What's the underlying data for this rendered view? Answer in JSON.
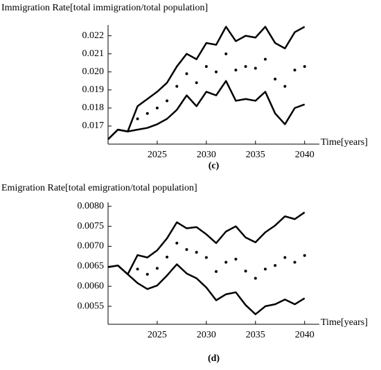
{
  "chart_data": [
    {
      "type": "line",
      "title": "Immigration Rate[total immigration/total population]",
      "x_label": "Time[years]",
      "caption": "(c)",
      "x": [
        2020,
        2021,
        2022,
        2023,
        2024,
        2025,
        2026,
        2027,
        2028,
        2029,
        2030,
        2031,
        2032,
        2033,
        2034,
        2035,
        2036,
        2037,
        2038,
        2039,
        2040
      ],
      "xlim": [
        2020,
        2041.5
      ],
      "xticks": [
        2025,
        2030,
        2035,
        2040
      ],
      "ylim": [
        0.016,
        0.0226
      ],
      "yticks": [
        0.017,
        0.018,
        0.019,
        {
          "value": 0.02,
          "label": "0.020"
        },
        0.021,
        0.022
      ],
      "series": [
        {
          "style": "line",
          "color": "#000000",
          "values": [
            0.01627,
            0.0168,
            0.0167,
            0.0181,
            0.0185,
            0.0189,
            0.0194,
            0.0203,
            0.021,
            0.0207,
            0.0216,
            0.0215,
            0.0225,
            0.0217,
            0.022,
            0.0219,
            0.0225,
            0.0216,
            0.0213,
            0.0222,
            0.0225
          ]
        },
        {
          "style": "line",
          "color": "#000000",
          "values": [
            0.01627,
            0.0168,
            0.0167,
            0.0168,
            0.0169,
            0.0171,
            0.0174,
            0.0179,
            0.0187,
            0.0181,
            0.0189,
            0.0187,
            0.0195,
            0.0184,
            0.0185,
            0.0184,
            0.0189,
            0.0177,
            0.0171,
            0.018,
            0.0182
          ]
        },
        {
          "style": "dots",
          "color": "#000000",
          "values": [
            null,
            null,
            null,
            0.0174,
            0.0177,
            0.018,
            0.0184,
            0.0192,
            0.0199,
            0.0194,
            0.0203,
            0.02,
            0.021,
            0.0201,
            0.0203,
            0.0202,
            0.0207,
            0.0196,
            0.0192,
            0.0201,
            0.0203
          ]
        }
      ]
    },
    {
      "type": "line",
      "title": "Emigration Rate[total emigration/total population]",
      "x_label": "Time[years]",
      "caption": "(d)",
      "x": [
        2020,
        2021,
        2022,
        2023,
        2024,
        2025,
        2026,
        2027,
        2028,
        2029,
        2030,
        2031,
        2032,
        2033,
        2034,
        2035,
        2036,
        2037,
        2038,
        2039,
        2040
      ],
      "xlim": [
        2020,
        2041.5
      ],
      "xticks": [
        2025,
        2030,
        2035,
        2040
      ],
      "ylim": [
        0.00505,
        0.0081
      ],
      "yticks": [
        0.0055,
        {
          "value": 0.006,
          "label": "0.0060"
        },
        0.0065,
        {
          "value": 0.007,
          "label": "0.0070"
        },
        0.0075,
        {
          "value": 0.008,
          "label": "0.0080"
        }
      ],
      "series": [
        {
          "style": "line",
          "color": "#000000",
          "values": [
            0.00648,
            0.00652,
            0.0063,
            0.00678,
            0.00672,
            0.0069,
            0.0072,
            0.0076,
            0.00745,
            0.00748,
            0.0073,
            0.00708,
            0.00737,
            0.0075,
            0.00722,
            0.0071,
            0.00735,
            0.00752,
            0.00775,
            0.00768,
            0.00785
          ]
        },
        {
          "style": "line",
          "color": "#000000",
          "values": [
            0.00648,
            0.00652,
            0.0063,
            0.00608,
            0.00593,
            0.00602,
            0.00627,
            0.00655,
            0.00632,
            0.0062,
            0.00597,
            0.00565,
            0.0058,
            0.00585,
            0.00553,
            0.0053,
            0.0055,
            0.00555,
            0.00567,
            0.00555,
            0.0057
          ]
        },
        {
          "style": "dots",
          "color": "#000000",
          "values": [
            null,
            null,
            null,
            0.00643,
            0.0063,
            0.00645,
            0.00673,
            0.00708,
            0.00692,
            0.00685,
            0.00672,
            0.00637,
            0.0066,
            0.00668,
            0.00638,
            0.0062,
            0.00643,
            0.00652,
            0.00672,
            0.0066,
            0.00677
          ]
        }
      ]
    }
  ]
}
